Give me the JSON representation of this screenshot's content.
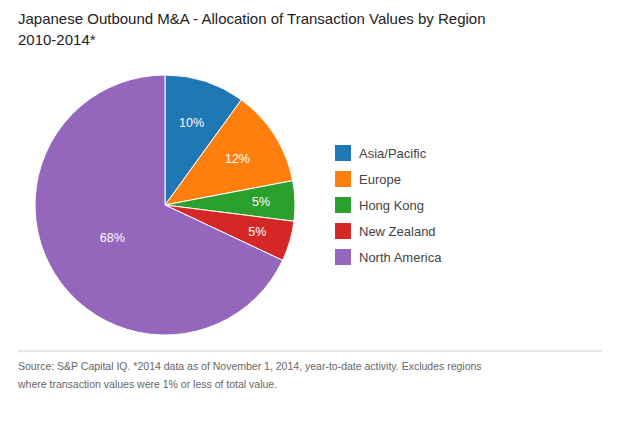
{
  "chart_data": {
    "type": "pie",
    "title": "Japanese Outbound M&A - Allocation of Transaction Values by Region",
    "subtitle": "2010-2014*",
    "categories": [
      "Asia/Pacific",
      "Europe",
      "Hong Kong",
      "New Zealand",
      "North America"
    ],
    "values": [
      10,
      12,
      5,
      5,
      68
    ],
    "value_labels": [
      "10%",
      "12%",
      "5%",
      "5%",
      "68%"
    ],
    "data_labels": true,
    "legend": "right",
    "annotations": [
      "Source: S&P Capital IQ.  *2014 data as of November 1, 2014, year-to-date activity. Excludes regions",
      "where transaction values were 1% or less of total value."
    ]
  }
}
